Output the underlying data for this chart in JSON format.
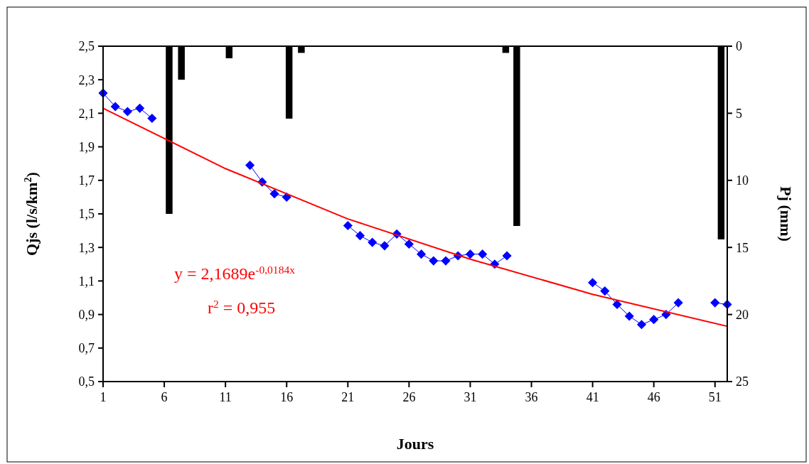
{
  "chart_data": {
    "type": "line",
    "xlabel": "Jours",
    "ylabel": "Qjs (l/s/km$^{2}$)",
    "y2label": "Pj (mm)",
    "xlim": [
      1,
      52
    ],
    "xticks": [
      1,
      6,
      11,
      16,
      21,
      26,
      31,
      36,
      41,
      46,
      51
    ],
    "ylim": [
      0.5,
      2.5
    ],
    "yticks": [
      {
        "value": 0.5,
        "label": "0,5"
      },
      {
        "value": 0.7,
        "label": "0,7"
      },
      {
        "value": 0.9,
        "label": "0,9"
      },
      {
        "value": 1.1,
        "label": "1,1"
      },
      {
        "value": 1.3,
        "label": "1,3"
      },
      {
        "value": 1.5,
        "label": "1,5"
      },
      {
        "value": 1.7,
        "label": "1,7"
      },
      {
        "value": 1.9,
        "label": "1,9"
      },
      {
        "value": 2.1,
        "label": "2,1"
      },
      {
        "value": 2.3,
        "label": "2,3"
      },
      {
        "value": 2.5,
        "label": "2,5"
      }
    ],
    "y2lim": [
      25,
      0
    ],
    "y2ticks": [
      0,
      5,
      10,
      15,
      20,
      25
    ],
    "grid": false,
    "series": [
      {
        "type": "bar",
        "axis": "y2",
        "color": "#000000",
        "x": [
          6.4,
          7.4,
          11.3,
          16.2,
          17.2,
          33.9,
          34.8,
          51.5
        ],
        "values": [
          12.5,
          2.5,
          0.9,
          5.4,
          0.5,
          0.5,
          13.4,
          14.4
        ]
      },
      {
        "color": "#0000ff",
        "marker": "diamond",
        "x": [
          1,
          2,
          3,
          4,
          5,
          6,
          7,
          8,
          9,
          10,
          11,
          12,
          13,
          14,
          15,
          16,
          17,
          18,
          19,
          20,
          21,
          22,
          23,
          24,
          25,
          26,
          27,
          28,
          29,
          30,
          31,
          32,
          33,
          34,
          35,
          36,
          37,
          38,
          39,
          40,
          41,
          42,
          43,
          44,
          45,
          46,
          47,
          48,
          49,
          50,
          51,
          52
        ],
        "values": [
          2.22,
          2.14,
          2.11,
          2.13,
          2.07,
          null,
          null,
          null,
          null,
          null,
          null,
          null,
          1.79,
          1.69,
          1.62,
          1.6,
          null,
          null,
          null,
          null,
          1.43,
          1.37,
          1.33,
          1.31,
          1.38,
          1.32,
          1.26,
          1.22,
          1.22,
          1.25,
          1.26,
          1.26,
          1.2,
          1.25,
          null,
          null,
          null,
          null,
          null,
          null,
          1.09,
          1.04,
          0.96,
          0.89,
          0.84,
          0.87,
          0.9,
          0.97,
          null,
          null,
          0.97,
          0.96
        ]
      },
      {
        "type": "line",
        "color": "#ff0000",
        "marker": "none",
        "x": [
          1,
          11,
          21,
          31,
          41,
          52
        ],
        "values": [
          2.13,
          1.77,
          1.47,
          1.23,
          1.02,
          0.83
        ]
      }
    ],
    "annotations": [
      "y = 2,1689e$^{-0,0184x}$",
      "r$^{2}$ = 0,955"
    ]
  }
}
